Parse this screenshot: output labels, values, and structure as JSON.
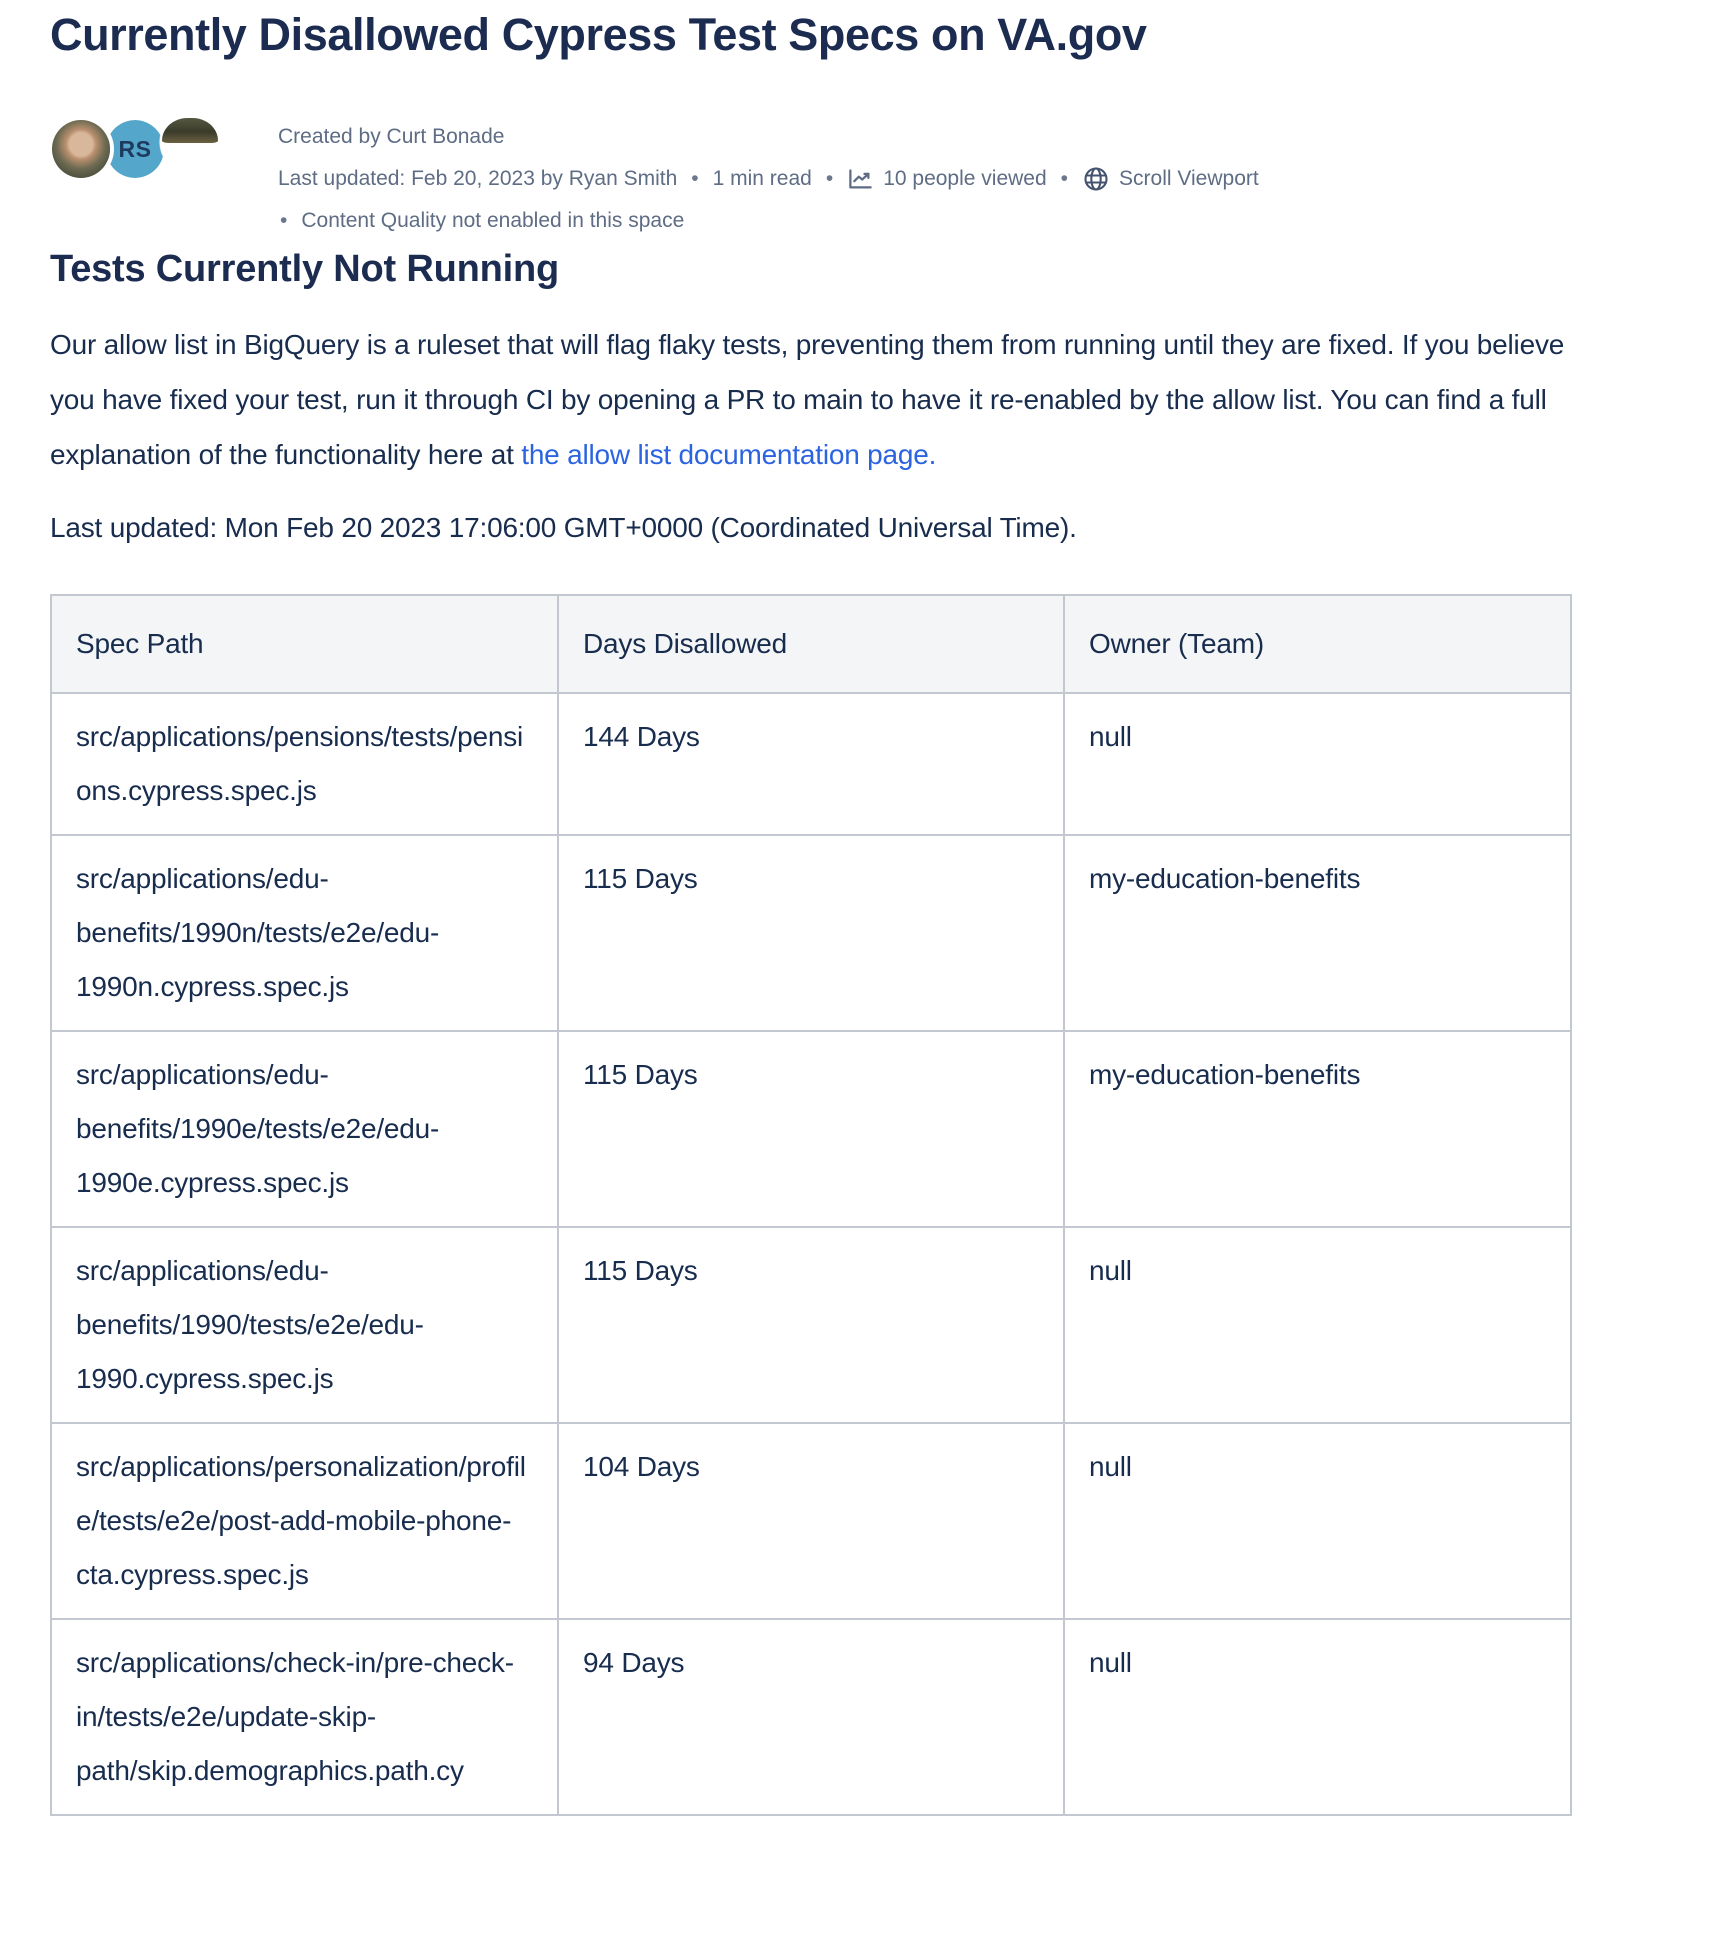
{
  "page": {
    "title": "Currently Disallowed Cypress Test Specs on VA.gov"
  },
  "byline": {
    "created": "Created by Curt Bonade",
    "last_updated": "Last updated: Feb 20, 2023 by Ryan Smith",
    "read_time": "1 min read",
    "views": "10 people viewed",
    "viewport": "Scroll Viewport",
    "content_quality": "Content Quality not enabled in this space",
    "separator": "•",
    "avatars": [
      {
        "type": "photo",
        "initials": ""
      },
      {
        "type": "initials",
        "initials": "RS"
      },
      {
        "type": "photo-partial",
        "initials": ""
      }
    ],
    "icons": {
      "views_icon": "trend-line-chart",
      "viewport_icon": "globe"
    }
  },
  "content": {
    "heading": "Tests Currently Not Running",
    "paragraph": "Our allow list in BigQuery is a ruleset that will flag flaky tests, preventing them from running until they are fixed. If you believe you have fixed your test, run it through CI by opening a PR to main to have it re-enabled by the allow list. You can find a full explanation of the functionality here at ",
    "paragraph_link": "the allow list documentation page.",
    "last_updated_line": "Last updated: Mon Feb 20 2023 17:06:00 GMT+0000 (Coordinated Universal Time)."
  },
  "table": {
    "headers": [
      "Spec Path",
      "Days Disallowed",
      "Owner (Team)"
    ],
    "rows": [
      [
        "src/applications/pensions/tests/pensions.cypress.spec.js",
        "144 Days",
        "null"
      ],
      [
        "src/applications/edu-benefits/1990n/tests/e2e/edu-1990n.cypress.spec.js",
        "115 Days",
        "my-education-benefits"
      ],
      [
        "src/applications/edu-benefits/1990e/tests/e2e/edu-1990e.cypress.spec.js",
        "115 Days",
        "my-education-benefits"
      ],
      [
        "src/applications/edu-benefits/1990/tests/e2e/edu-1990.cypress.spec.js",
        "115 Days",
        "null"
      ],
      [
        "src/applications/personalization/profile/tests/e2e/post-add-mobile-phone-cta.cypress.spec.js",
        "104 Days",
        "null"
      ],
      [
        "src/applications/check-in/pre-check-in/tests/e2e/update-skip-path/skip.demographics.path.cy",
        "94 Days",
        "null"
      ]
    ]
  },
  "colors": {
    "heading_text": "#1c2b50",
    "body_text": "#182c4e",
    "meta_text": "#5e6c84",
    "link_blue": "#2b63e0",
    "table_border": "#c2c7d0",
    "table_header_bg": "#f4f5f7",
    "avatar_teal": "#54a7cb"
  }
}
